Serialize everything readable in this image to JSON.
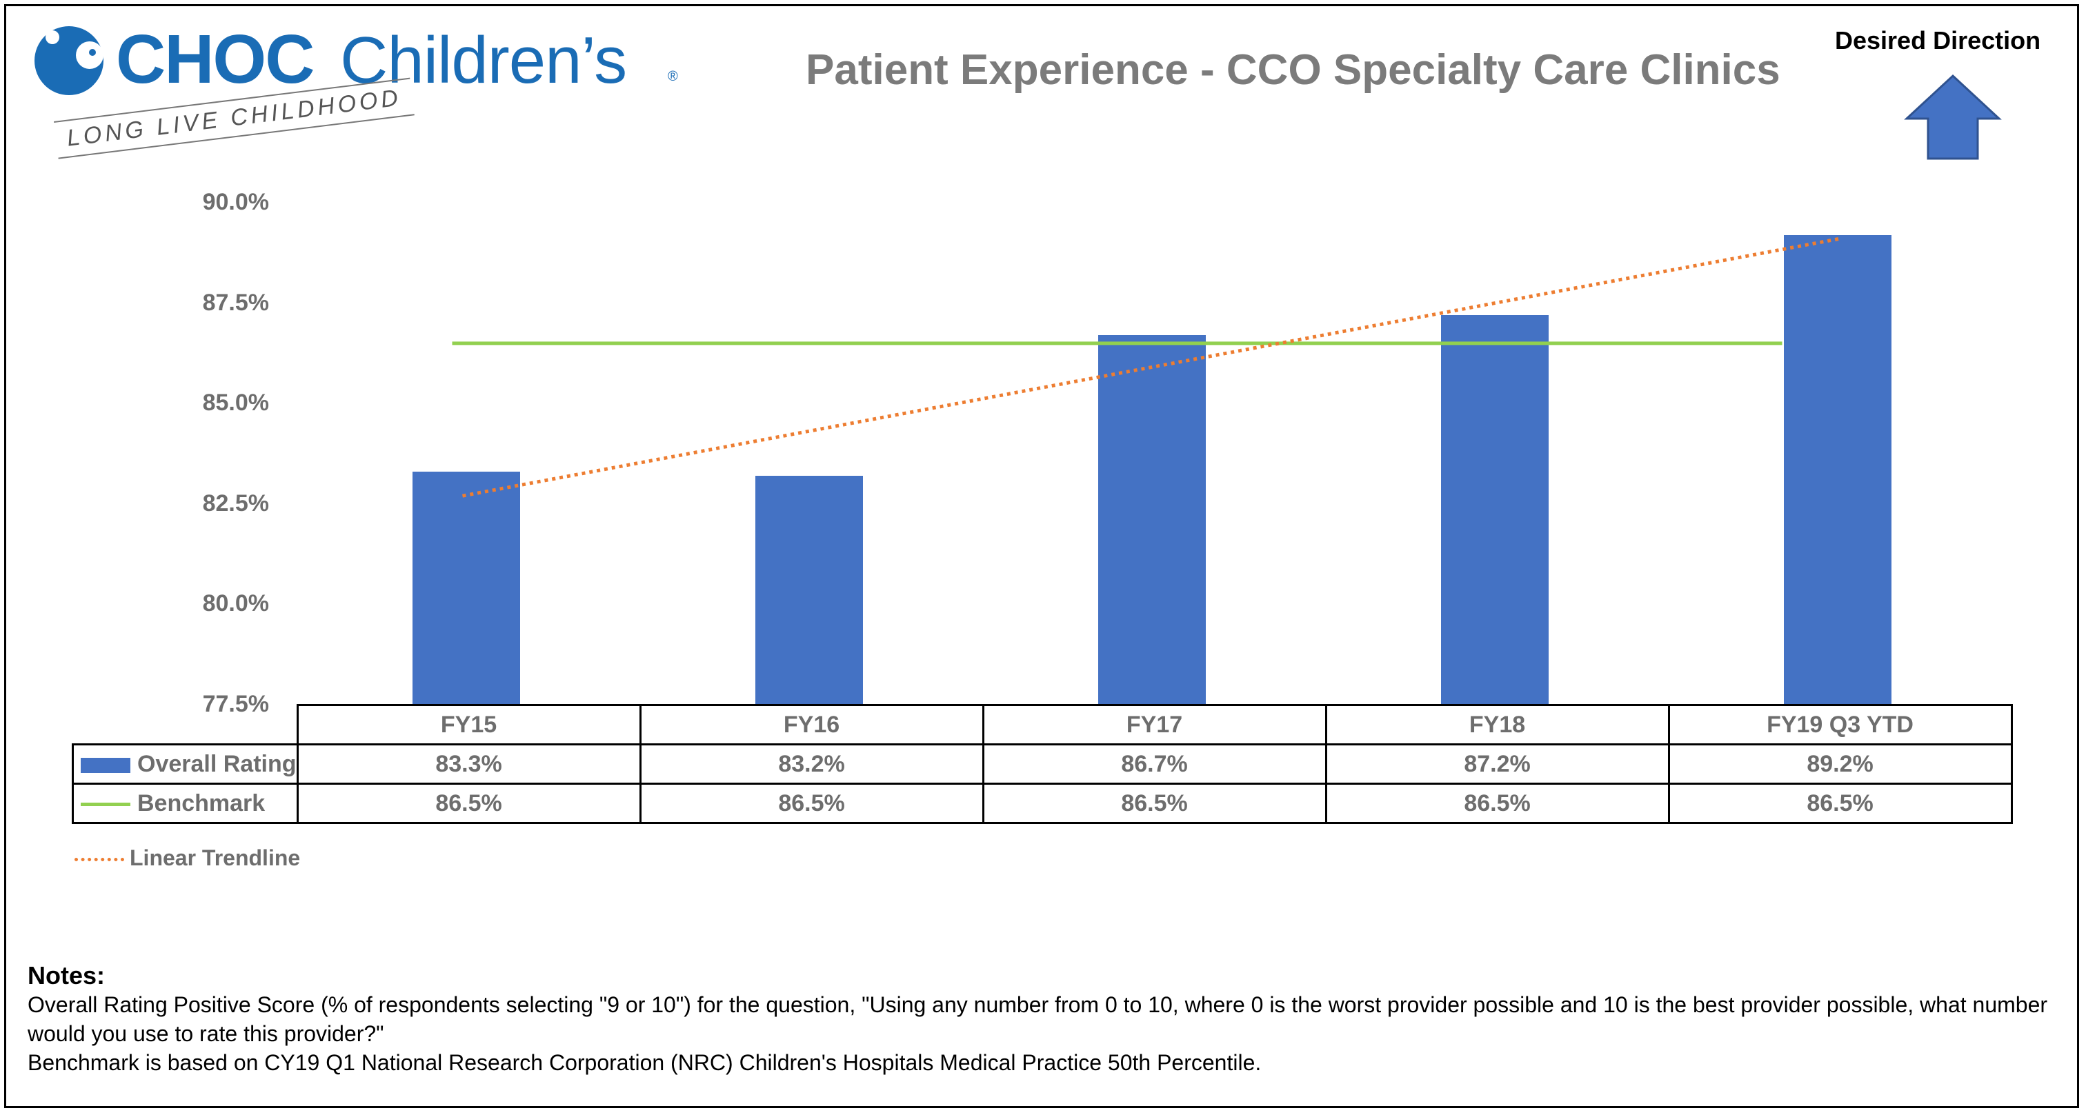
{
  "logo": {
    "brand_bold": "CHOC",
    "brand_rest": "Children’s",
    "registered": "®",
    "tagline": "LONG LIVE CHILDHOOD",
    "color": "#1a6cb5"
  },
  "header": {
    "title": "Patient Experience - CCO Specialty Care Clinics",
    "desired_direction_label": "Desired Direction",
    "desired_direction_icon": "arrow-up-icon"
  },
  "chart_data": {
    "type": "bar",
    "title": "Patient Experience - CCO Specialty Care Clinics",
    "categories": [
      "FY15",
      "FY16",
      "FY17",
      "FY18",
      "FY19 Q3 YTD"
    ],
    "series": [
      {
        "name": "Overall Rating",
        "kind": "bar",
        "color": "#4472c4",
        "values": [
          83.3,
          83.2,
          86.7,
          87.2,
          89.2
        ],
        "labels": [
          "83.3%",
          "83.2%",
          "86.7%",
          "87.2%",
          "89.2%"
        ]
      },
      {
        "name": "Benchmark",
        "kind": "line",
        "color": "#92d050",
        "values": [
          86.5,
          86.5,
          86.5,
          86.5,
          86.5
        ],
        "labels": [
          "86.5%",
          "86.5%",
          "86.5%",
          "86.5%",
          "86.5%"
        ]
      },
      {
        "name": "Linear Trendline",
        "kind": "trendline",
        "color": "#ed7d31",
        "values": [
          82.7,
          84.3,
          85.8,
          87.5,
          89.1
        ]
      }
    ],
    "ylim": [
      77.5,
      90.0
    ],
    "yticks": [
      "77.5%",
      "80.0%",
      "82.5%",
      "85.0%",
      "87.5%",
      "90.0%"
    ],
    "ytick_values": [
      77.5,
      80.0,
      82.5,
      85.0,
      87.5,
      90.0
    ],
    "xlabel": "",
    "ylabel": "",
    "legend": "data-table-below"
  },
  "notes": {
    "title": "Notes:",
    "line1": "Overall Rating Positive Score (% of respondents selecting \"9 or 10\") for the question, \"Using any number from 0 to 10, where 0 is the worst provider possible and 10 is the best provider possible, what number would you use to rate this provider?\"",
    "line2": "Benchmark is based on CY19 Q1 National Research Corporation (NRC) Children's Hospitals Medical Practice 50th Percentile."
  }
}
